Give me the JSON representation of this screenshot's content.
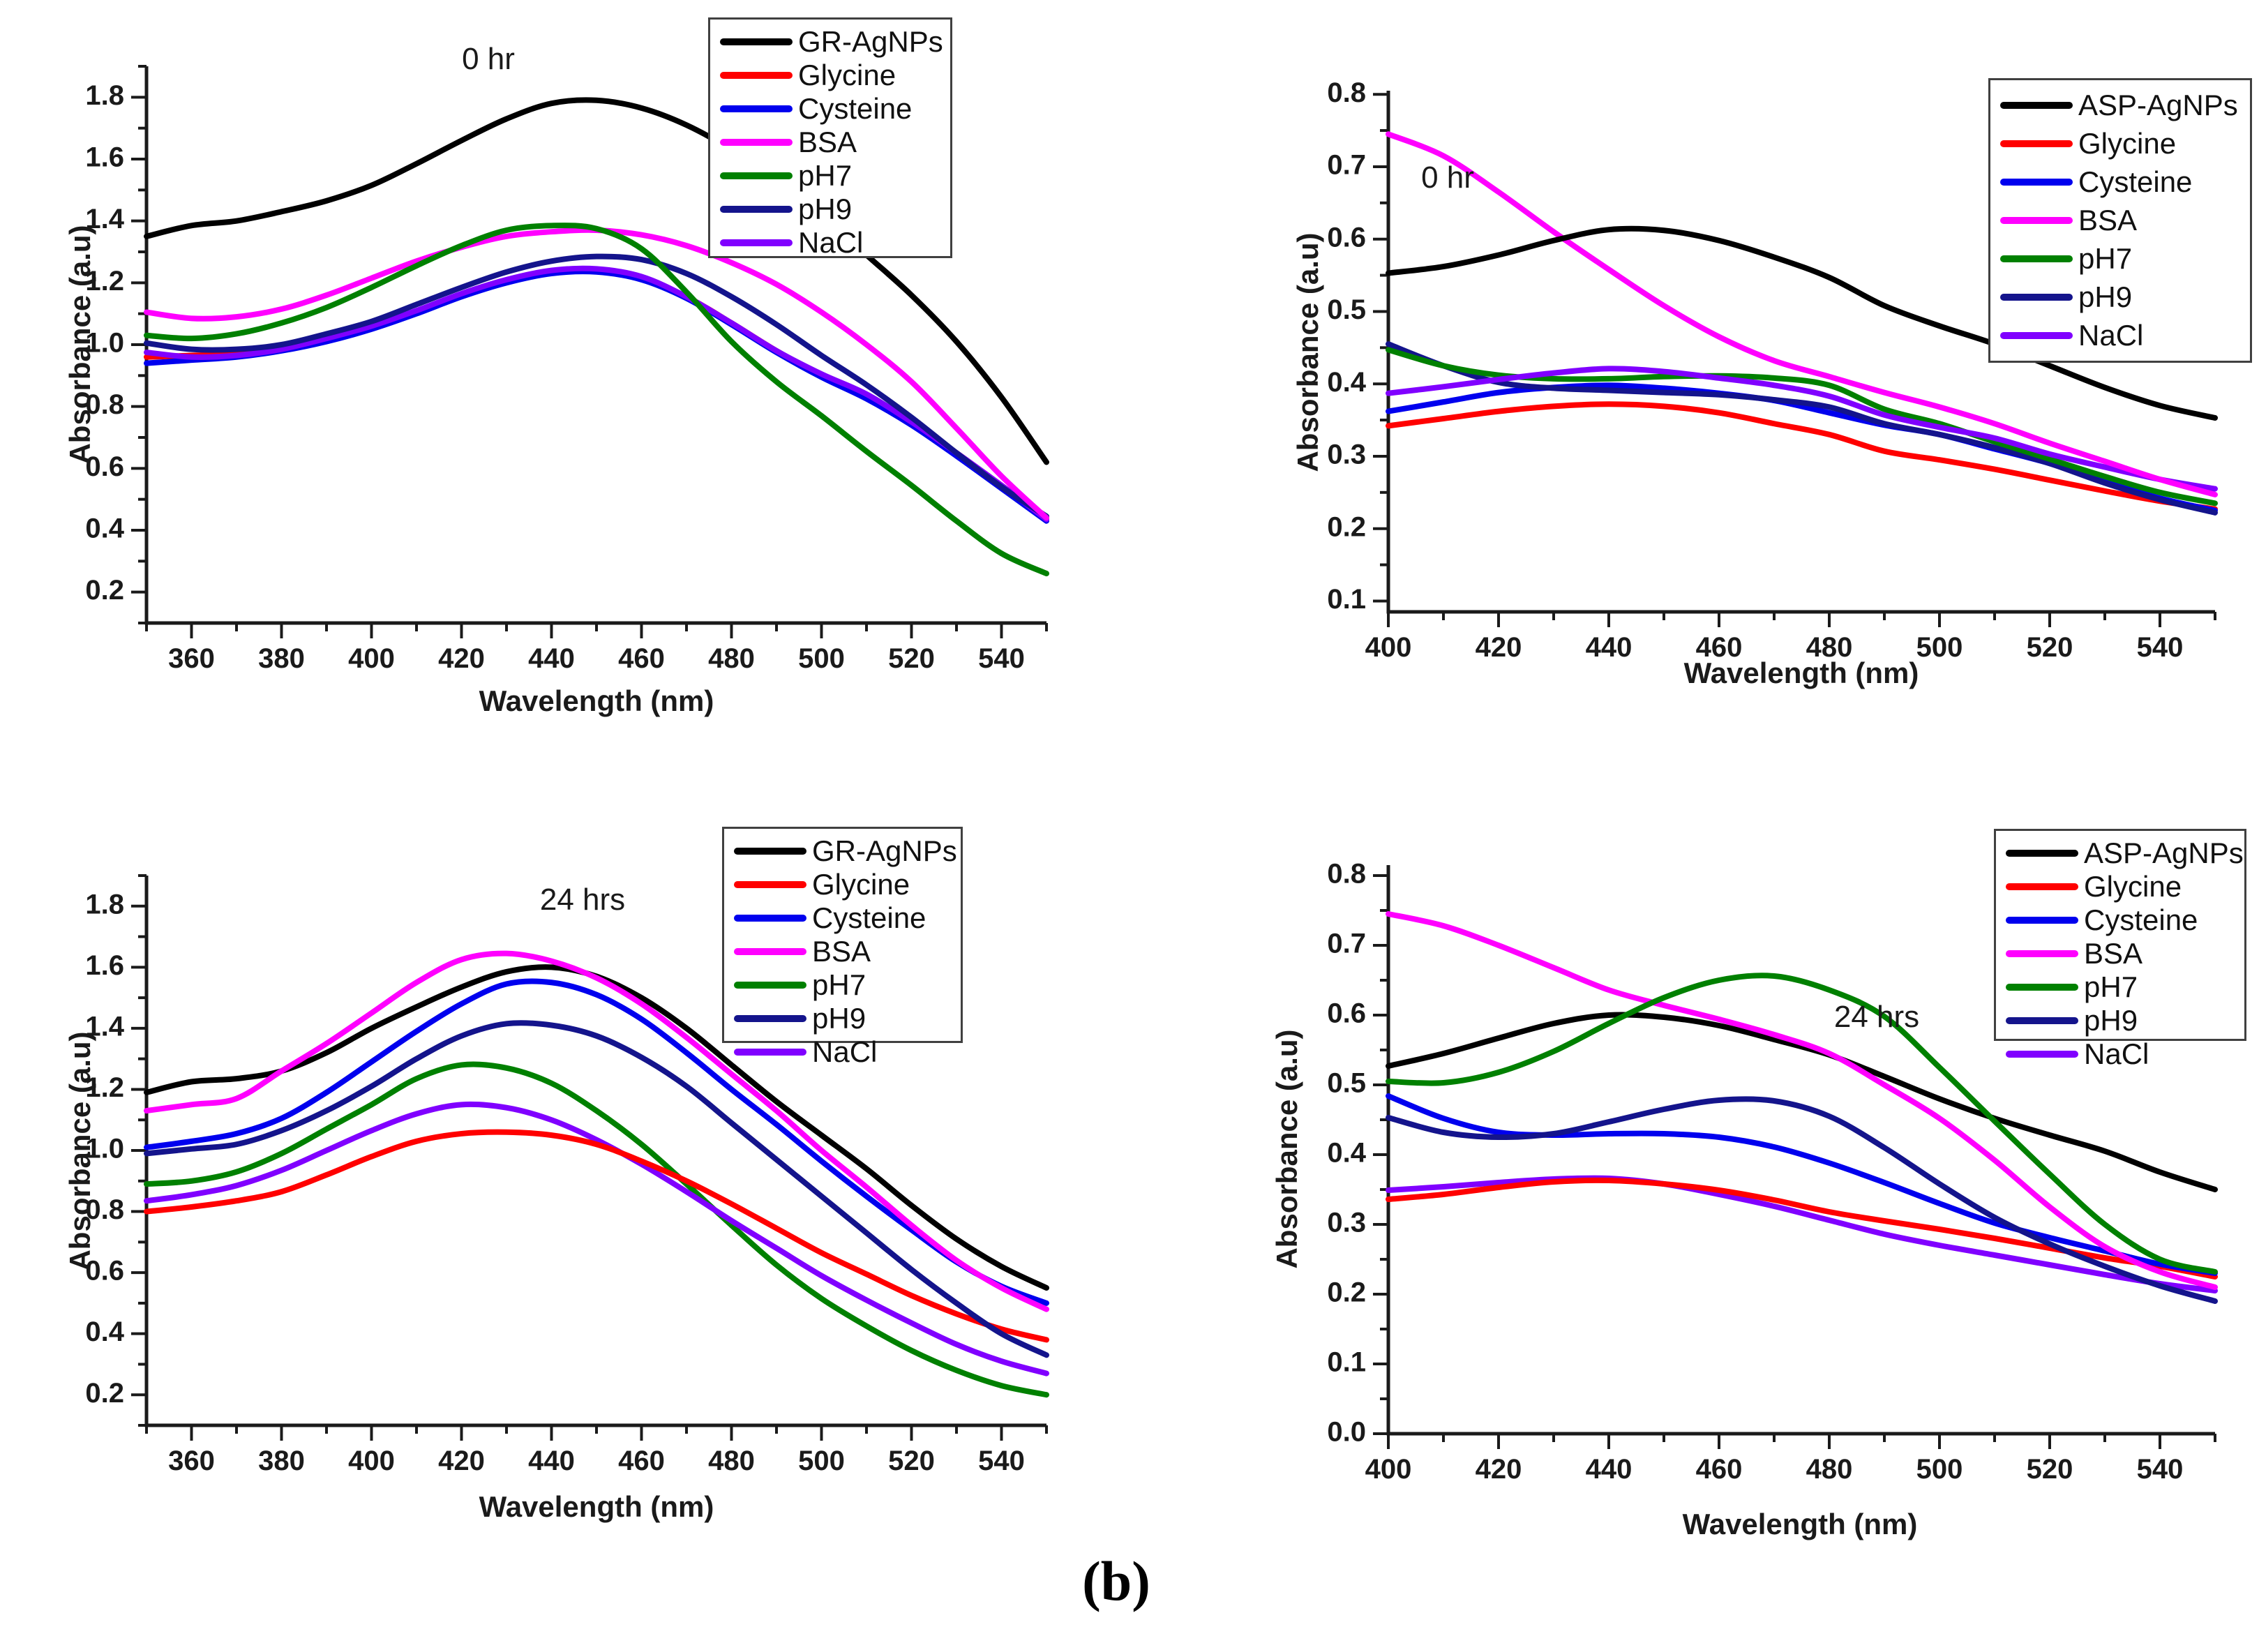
{
  "caption": "(b)",
  "palette": {
    "black": "#000000",
    "red": "#ff0000",
    "blue": "#0000ee",
    "magenta": "#ff00ff",
    "green": "#008000",
    "navy": "#14148c",
    "violet": "#8000ff",
    "axis": "#1a1a1a"
  },
  "chart_data": {
    "note": "see charts array",
    "type": "line"
  },
  "charts": [
    {
      "id": "gr-0hr",
      "type": "line",
      "title": "0 hr",
      "xlabel": "Wavelength (nm)",
      "ylabel": "Absorbance (a.u)",
      "xlim": [
        350,
        550
      ],
      "ylim": [
        0.1,
        1.9
      ],
      "xticks": [
        360,
        380,
        400,
        420,
        440,
        460,
        480,
        500,
        520,
        540
      ],
      "xminor": 10,
      "yticks": [
        0.2,
        0.4,
        0.6,
        0.8,
        1.0,
        1.2,
        1.4,
        1.6,
        1.8
      ],
      "yminor": 0.1,
      "ydecimals": 1,
      "x_start": 350,
      "x_step": 10,
      "legend_position": "top-right",
      "grid": false,
      "draw_order": [
        "Glycine",
        "Cysteine",
        "NaCl",
        "pH9",
        "BSA",
        "pH7",
        "GR-AgNPs"
      ],
      "series": [
        {
          "name": "GR-AgNPs",
          "color": "#000000",
          "values": [
            1.35,
            1.385,
            1.4,
            1.43,
            1.465,
            1.515,
            1.585,
            1.66,
            1.73,
            1.78,
            1.79,
            1.765,
            1.71,
            1.63,
            1.53,
            1.42,
            1.29,
            1.16,
            1.01,
            0.83,
            0.62
          ]
        },
        {
          "name": "Glycine",
          "color": "#ff0000",
          "values": [
            0.96,
            0.965,
            0.97,
            0.99,
            1.02,
            1.06,
            1.105,
            1.16,
            1.205,
            1.235,
            1.24,
            1.215,
            1.155,
            1.07,
            0.98,
            0.9,
            0.835,
            0.75,
            0.65,
            0.545,
            0.44
          ]
        },
        {
          "name": "Cysteine",
          "color": "#0000ee",
          "values": [
            0.94,
            0.95,
            0.96,
            0.98,
            1.01,
            1.05,
            1.1,
            1.155,
            1.2,
            1.23,
            1.235,
            1.21,
            1.15,
            1.065,
            0.975,
            0.895,
            0.825,
            0.74,
            0.64,
            0.535,
            0.43
          ]
        },
        {
          "name": "BSA",
          "color": "#ff00ff",
          "values": [
            1.105,
            1.085,
            1.09,
            1.115,
            1.16,
            1.215,
            1.27,
            1.315,
            1.35,
            1.365,
            1.37,
            1.355,
            1.32,
            1.265,
            1.195,
            1.105,
            1.0,
            0.88,
            0.73,
            0.575,
            0.44
          ]
        },
        {
          "name": "pH7",
          "color": "#008000",
          "values": [
            1.03,
            1.02,
            1.035,
            1.07,
            1.12,
            1.185,
            1.255,
            1.32,
            1.37,
            1.385,
            1.375,
            1.31,
            1.17,
            1.01,
            0.88,
            0.77,
            0.655,
            0.545,
            0.43,
            0.325,
            0.26
          ]
        },
        {
          "name": "pH9",
          "color": "#14148c",
          "values": [
            1.005,
            0.985,
            0.985,
            1.0,
            1.035,
            1.075,
            1.13,
            1.185,
            1.235,
            1.27,
            1.285,
            1.275,
            1.23,
            1.155,
            1.065,
            0.965,
            0.87,
            0.765,
            0.65,
            0.54,
            0.445
          ]
        },
        {
          "name": "NaCl",
          "color": "#8000ff",
          "values": [
            0.975,
            0.96,
            0.965,
            0.985,
            1.02,
            1.06,
            1.11,
            1.165,
            1.21,
            1.24,
            1.245,
            1.22,
            1.155,
            1.07,
            0.98,
            0.905,
            0.84,
            0.75,
            0.65,
            0.545,
            0.435
          ]
        }
      ]
    },
    {
      "id": "asp-0hr",
      "type": "line",
      "title": "0 hr",
      "xlabel": "Wavelength (nm)",
      "ylabel": "Absorbance (a.u)",
      "xlim": [
        400,
        550
      ],
      "ylim": [
        0.085,
        0.805
      ],
      "xticks": [
        400,
        420,
        440,
        460,
        480,
        500,
        520,
        540
      ],
      "xminor": 10,
      "yticks": [
        0.1,
        0.2,
        0.3,
        0.4,
        0.5,
        0.6,
        0.7,
        0.8
      ],
      "yminor": 0.05,
      "ydecimals": 1,
      "x_start": 400,
      "x_step": 10,
      "legend_position": "top-right",
      "grid": false,
      "draw_order": [
        "Glycine",
        "Cysteine",
        "pH9",
        "pH7",
        "NaCl",
        "BSA",
        "ASP-AgNPs"
      ],
      "series": [
        {
          "name": "ASP-AgNPs",
          "color": "#000000",
          "values": [
            0.553,
            0.562,
            0.578,
            0.598,
            0.613,
            0.612,
            0.598,
            0.575,
            0.547,
            0.508,
            0.48,
            0.455,
            0.425,
            0.395,
            0.37,
            0.353
          ]
        },
        {
          "name": "Glycine",
          "color": "#ff0000",
          "values": [
            0.342,
            0.352,
            0.362,
            0.369,
            0.372,
            0.369,
            0.36,
            0.345,
            0.33,
            0.307,
            0.295,
            0.282,
            0.267,
            0.252,
            0.238,
            0.227
          ]
        },
        {
          "name": "Cysteine",
          "color": "#0000ee",
          "values": [
            0.362,
            0.375,
            0.388,
            0.395,
            0.398,
            0.394,
            0.387,
            0.377,
            0.36,
            0.343,
            0.33,
            0.31,
            0.29,
            0.265,
            0.242,
            0.225
          ]
        },
        {
          "name": "BSA",
          "color": "#ff00ff",
          "values": [
            0.745,
            0.715,
            0.665,
            0.61,
            0.558,
            0.508,
            0.465,
            0.432,
            0.41,
            0.388,
            0.368,
            0.345,
            0.318,
            0.293,
            0.268,
            0.247
          ]
        },
        {
          "name": "pH7",
          "color": "#008000",
          "values": [
            0.447,
            0.425,
            0.412,
            0.407,
            0.407,
            0.41,
            0.411,
            0.408,
            0.398,
            0.365,
            0.345,
            0.32,
            0.296,
            0.272,
            0.25,
            0.235
          ]
        },
        {
          "name": "pH9",
          "color": "#14148c",
          "values": [
            0.455,
            0.425,
            0.402,
            0.394,
            0.391,
            0.388,
            0.385,
            0.378,
            0.368,
            0.345,
            0.33,
            0.312,
            0.29,
            0.263,
            0.24,
            0.222
          ]
        },
        {
          "name": "NaCl",
          "color": "#8000ff",
          "values": [
            0.387,
            0.396,
            0.406,
            0.415,
            0.421,
            0.417,
            0.408,
            0.398,
            0.383,
            0.357,
            0.34,
            0.325,
            0.303,
            0.285,
            0.268,
            0.255
          ]
        }
      ]
    },
    {
      "id": "gr-24hr",
      "type": "line",
      "title": "24 hrs",
      "xlabel": "Wavelength (nm)",
      "ylabel": "Absorbance (a.u)",
      "xlim": [
        350,
        550
      ],
      "ylim": [
        0.1,
        1.9
      ],
      "xticks": [
        360,
        380,
        400,
        420,
        440,
        460,
        480,
        500,
        520,
        540
      ],
      "xminor": 10,
      "yticks": [
        0.2,
        0.4,
        0.6,
        0.8,
        1.0,
        1.2,
        1.4,
        1.6,
        1.8
      ],
      "yminor": 0.1,
      "ydecimals": 1,
      "x_start": 350,
      "x_step": 10,
      "legend_position": "top-right",
      "grid": false,
      "draw_order": [
        "pH7",
        "NaCl",
        "Glycine",
        "pH9",
        "Cysteine",
        "GR-AgNPs",
        "BSA"
      ],
      "series": [
        {
          "name": "GR-AgNPs",
          "color": "#000000",
          "values": [
            1.19,
            1.225,
            1.235,
            1.26,
            1.32,
            1.4,
            1.47,
            1.535,
            1.585,
            1.6,
            1.57,
            1.5,
            1.4,
            1.28,
            1.16,
            1.05,
            0.94,
            0.82,
            0.71,
            0.62,
            0.55
          ]
        },
        {
          "name": "Glycine",
          "color": "#ff0000",
          "values": [
            0.8,
            0.815,
            0.835,
            0.865,
            0.92,
            0.98,
            1.03,
            1.055,
            1.06,
            1.05,
            1.02,
            0.965,
            0.9,
            0.825,
            0.745,
            0.665,
            0.595,
            0.525,
            0.465,
            0.415,
            0.38
          ]
        },
        {
          "name": "Cysteine",
          "color": "#0000ee",
          "values": [
            1.01,
            1.03,
            1.055,
            1.105,
            1.19,
            1.29,
            1.39,
            1.48,
            1.545,
            1.55,
            1.51,
            1.43,
            1.32,
            1.2,
            1.085,
            0.965,
            0.85,
            0.74,
            0.635,
            0.555,
            0.5
          ]
        },
        {
          "name": "BSA",
          "color": "#ff00ff",
          "values": [
            1.13,
            1.15,
            1.17,
            1.26,
            1.35,
            1.45,
            1.55,
            1.625,
            1.645,
            1.62,
            1.565,
            1.48,
            1.37,
            1.25,
            1.13,
            1.0,
            0.88,
            0.755,
            0.64,
            0.55,
            0.48
          ]
        },
        {
          "name": "pH7",
          "color": "#008000",
          "values": [
            0.89,
            0.9,
            0.93,
            0.99,
            1.07,
            1.15,
            1.235,
            1.28,
            1.27,
            1.22,
            1.13,
            1.02,
            0.89,
            0.755,
            0.625,
            0.515,
            0.425,
            0.345,
            0.28,
            0.23,
            0.2
          ]
        },
        {
          "name": "pH9",
          "color": "#14148c",
          "values": [
            0.99,
            1.005,
            1.02,
            1.065,
            1.13,
            1.21,
            1.3,
            1.375,
            1.415,
            1.41,
            1.375,
            1.305,
            1.21,
            1.09,
            0.97,
            0.85,
            0.73,
            0.61,
            0.5,
            0.4,
            0.33
          ]
        },
        {
          "name": "NaCl",
          "color": "#8000ff",
          "values": [
            0.835,
            0.855,
            0.885,
            0.935,
            1.0,
            1.065,
            1.12,
            1.15,
            1.14,
            1.1,
            1.035,
            0.955,
            0.865,
            0.77,
            0.68,
            0.59,
            0.51,
            0.435,
            0.365,
            0.31,
            0.27
          ]
        }
      ]
    },
    {
      "id": "asp-24hr",
      "type": "line",
      "title": "24 hrs",
      "xlabel": "Wavelength (nm)",
      "ylabel": "Absorbance (a.u)",
      "xlim": [
        400,
        550
      ],
      "ylim": [
        0.0,
        0.815
      ],
      "xticks": [
        400,
        420,
        440,
        460,
        480,
        500,
        520,
        540
      ],
      "xminor": 10,
      "yticks": [
        0.0,
        0.1,
        0.2,
        0.3,
        0.4,
        0.5,
        0.6,
        0.7,
        0.8
      ],
      "yminor": 0.05,
      "ydecimals": 1,
      "x_start": 400,
      "x_step": 10,
      "legend_position": "top-right",
      "grid": false,
      "draw_order": [
        "NaCl",
        "Glycine",
        "Cysteine",
        "pH9",
        "ASP-AgNPs",
        "BSA",
        "pH7"
      ],
      "series": [
        {
          "name": "ASP-AgNPs",
          "color": "#000000",
          "values": [
            0.527,
            0.545,
            0.567,
            0.588,
            0.6,
            0.597,
            0.585,
            0.565,
            0.543,
            0.512,
            0.48,
            0.452,
            0.428,
            0.405,
            0.375,
            0.35
          ]
        },
        {
          "name": "Glycine",
          "color": "#ff0000",
          "values": [
            0.336,
            0.343,
            0.353,
            0.361,
            0.363,
            0.358,
            0.349,
            0.335,
            0.318,
            0.305,
            0.293,
            0.28,
            0.266,
            0.252,
            0.24,
            0.225
          ]
        },
        {
          "name": "Cysteine",
          "color": "#0000ee",
          "values": [
            0.484,
            0.452,
            0.432,
            0.428,
            0.43,
            0.43,
            0.425,
            0.411,
            0.388,
            0.36,
            0.33,
            0.302,
            0.281,
            0.262,
            0.243,
            0.23
          ]
        },
        {
          "name": "BSA",
          "color": "#ff00ff",
          "values": [
            0.745,
            0.728,
            0.7,
            0.668,
            0.636,
            0.614,
            0.594,
            0.572,
            0.545,
            0.5,
            0.452,
            0.392,
            0.325,
            0.268,
            0.232,
            0.21
          ]
        },
        {
          "name": "pH7",
          "color": "#008000",
          "values": [
            0.505,
            0.503,
            0.518,
            0.548,
            0.588,
            0.625,
            0.65,
            0.656,
            0.636,
            0.598,
            0.525,
            0.448,
            0.372,
            0.3,
            0.25,
            0.232
          ]
        },
        {
          "name": "pH9",
          "color": "#14148c",
          "values": [
            0.453,
            0.432,
            0.425,
            0.43,
            0.447,
            0.465,
            0.478,
            0.477,
            0.455,
            0.41,
            0.358,
            0.31,
            0.272,
            0.24,
            0.212,
            0.19
          ]
        },
        {
          "name": "NaCl",
          "color": "#8000ff",
          "values": [
            0.349,
            0.354,
            0.36,
            0.365,
            0.366,
            0.358,
            0.343,
            0.326,
            0.306,
            0.286,
            0.27,
            0.256,
            0.242,
            0.228,
            0.215,
            0.205
          ]
        }
      ]
    }
  ]
}
